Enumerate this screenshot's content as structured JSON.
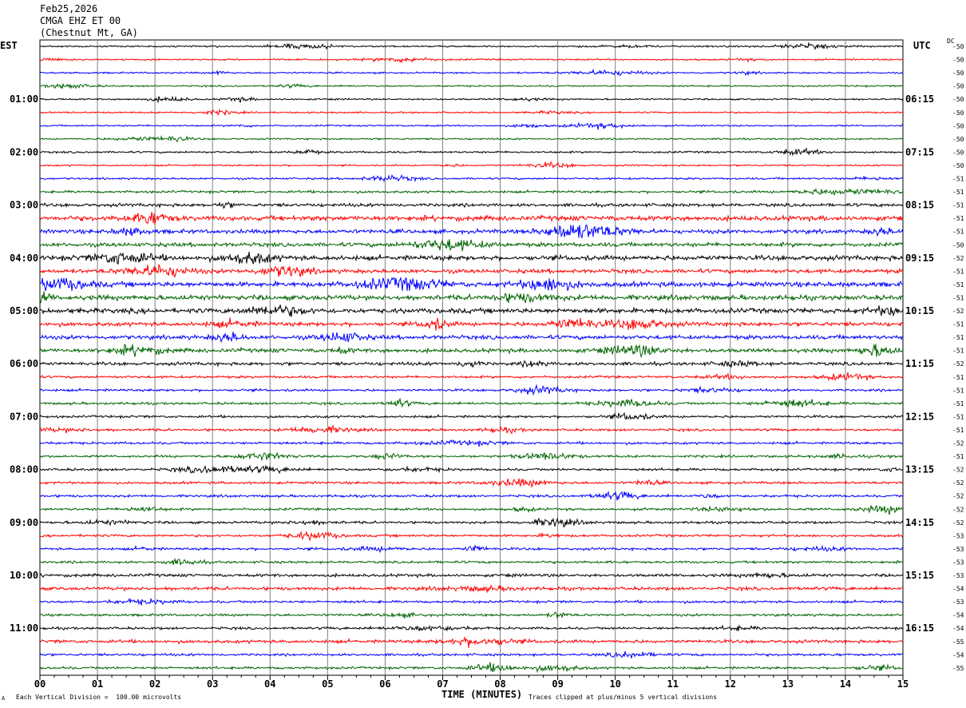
{
  "header": {
    "date": "Feb25,2026",
    "channel": "CMGA EHZ ET 00",
    "location": "(Chestnut Mt, GA)"
  },
  "axis_labels": {
    "left_tz": "EST",
    "right_tz": "UTC",
    "dc": "DC"
  },
  "footer": {
    "scale_note": "Each Vertical Division =  100.00 microvolts",
    "xlabel": "TIME (MINUTES)",
    "clip_note": "Traces clipped at plus/minus 5 vertical divisions",
    "corner": "A"
  },
  "colors": {
    "traces": [
      "#000000",
      "#ff0000",
      "#0000ff",
      "#006400"
    ],
    "grid": "#808080"
  },
  "chart_data": {
    "type": "line",
    "title": "",
    "xlabel": "TIME (MINUTES)",
    "xlim": [
      0,
      15
    ],
    "x_ticks": [
      "00",
      "01",
      "02",
      "03",
      "04",
      "05",
      "06",
      "07",
      "08",
      "09",
      "10",
      "11",
      "12",
      "13",
      "14",
      "15"
    ],
    "est_labels": [
      "01:00",
      "02:00",
      "03:00",
      "04:00",
      "05:00",
      "06:00",
      "07:00",
      "08:00",
      "09:00",
      "10:00",
      "11:00"
    ],
    "utc_labels": [
      "06:15",
      "07:15",
      "08:15",
      "09:15",
      "10:15",
      "11:15",
      "12:15",
      "13:15",
      "14:15",
      "15:15",
      "16:15"
    ],
    "trace_count": 48,
    "dc_offsets": [
      "-50",
      "-50",
      "-50",
      "-50",
      "-50",
      "-50",
      "-50",
      "-50",
      "-50",
      "-50",
      "-51",
      "-51",
      "-51",
      "-51",
      "-51",
      "-50",
      "-52",
      "-51",
      "-51",
      "-51",
      "-52",
      "-51",
      "-51",
      "-51",
      "-52",
      "-51",
      "-51",
      "-51",
      "-51",
      "-51",
      "-52",
      "-51",
      "-52",
      "-52",
      "-52",
      "-52",
      "-52",
      "-53",
      "-53",
      "-53",
      "-53",
      "-54",
      "-53",
      "-54",
      "-54",
      "-55",
      "-54",
      "-55"
    ],
    "amplitude_levels": [
      1,
      1,
      1,
      1,
      1,
      1,
      1,
      1,
      1.2,
      1,
      1.2,
      1.5,
      2,
      3,
      2.5,
      2.5,
      3,
      2.5,
      3,
      3,
      3,
      2.5,
      2.5,
      2.5,
      2,
      1.5,
      1.5,
      1.5,
      1.5,
      1.5,
      1.5,
      1.5,
      1.5,
      1.5,
      1.5,
      1.5,
      1.5,
      1.5,
      1.5,
      1.5,
      1.8,
      2,
      1.5,
      1.5,
      1.5,
      2,
      1.5,
      1.5
    ]
  }
}
